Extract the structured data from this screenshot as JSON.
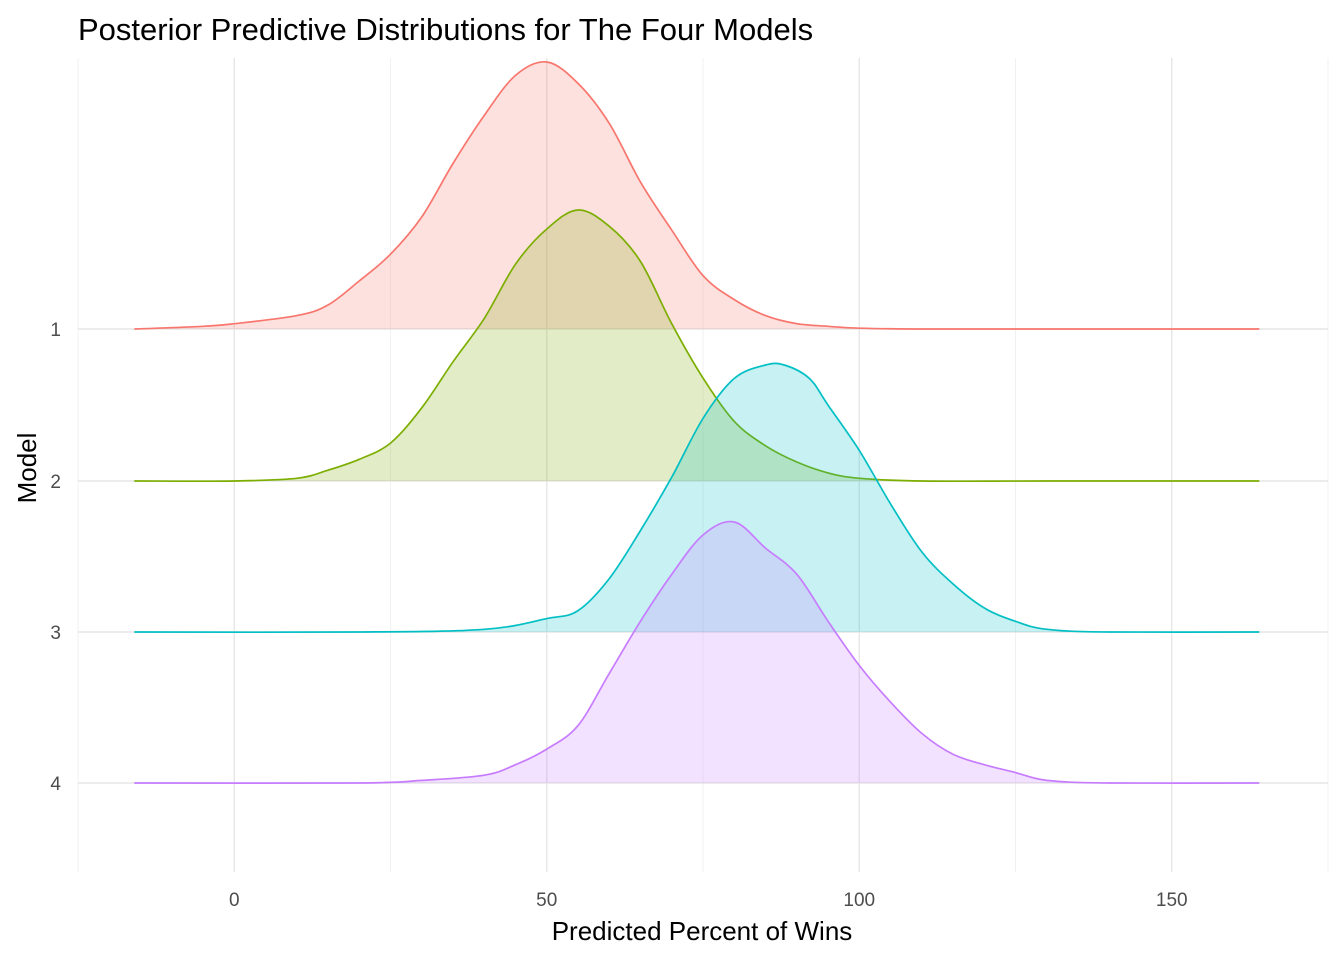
{
  "chart_data": {
    "type": "area",
    "subtype": "ridgeline-density",
    "title": "Posterior Predictive Distributions for The Four Models",
    "xlabel": "Predicted Percent of Wins",
    "ylabel": "Model",
    "xlim": [
      -25,
      175
    ],
    "x_ticks": [
      0,
      50,
      100,
      150
    ],
    "y_categories": [
      "1",
      "2",
      "3",
      "4"
    ],
    "grid": true,
    "legend": "none",
    "series": [
      {
        "category": "1",
        "color": "#F8766D",
        "x": [
          -16,
          -5,
          0,
          10,
          15,
          20,
          25,
          30,
          35,
          40,
          45,
          50,
          55,
          60,
          65,
          70,
          75,
          80,
          85,
          90,
          95,
          100,
          110,
          130,
          164
        ],
        "height": [
          0,
          0.01,
          0.02,
          0.05,
          0.09,
          0.18,
          0.28,
          0.42,
          0.62,
          0.8,
          0.95,
          1.0,
          0.92,
          0.77,
          0.55,
          0.37,
          0.2,
          0.11,
          0.05,
          0.02,
          0.01,
          0.003,
          0,
          0,
          0
        ]
      },
      {
        "category": "2",
        "color": "#7CAE00",
        "x": [
          -16,
          0,
          10,
          15,
          20,
          25,
          30,
          35,
          40,
          45,
          50,
          55,
          60,
          65,
          70,
          75,
          80,
          85,
          90,
          95,
          100,
          110,
          130,
          164
        ],
        "height": [
          0,
          0,
          0.01,
          0.04,
          0.08,
          0.14,
          0.27,
          0.44,
          0.6,
          0.8,
          0.93,
          1.0,
          0.94,
          0.81,
          0.58,
          0.38,
          0.22,
          0.13,
          0.07,
          0.03,
          0.01,
          0,
          0,
          0
        ]
      },
      {
        "category": "3",
        "color": "#00BFC4",
        "x": [
          -16,
          20,
          40,
          50,
          55,
          60,
          65,
          70,
          75,
          80,
          85,
          88,
          92,
          95,
          100,
          105,
          110,
          115,
          120,
          125,
          130,
          140,
          164
        ],
        "height": [
          0,
          0,
          0.01,
          0.05,
          0.08,
          0.2,
          0.38,
          0.58,
          0.8,
          0.95,
          1.0,
          1.0,
          0.95,
          0.85,
          0.68,
          0.48,
          0.3,
          0.18,
          0.09,
          0.04,
          0.01,
          0,
          0
        ]
      },
      {
        "category": "4",
        "color": "#C77CFF",
        "x": [
          -16,
          20,
          30,
          40,
          45,
          50,
          55,
          60,
          65,
          70,
          75,
          80,
          85,
          90,
          95,
          100,
          105,
          110,
          115,
          120,
          125,
          130,
          140,
          164
        ],
        "height": [
          0,
          0,
          0.01,
          0.03,
          0.07,
          0.13,
          0.22,
          0.42,
          0.62,
          0.8,
          0.95,
          1.0,
          0.9,
          0.8,
          0.62,
          0.45,
          0.31,
          0.19,
          0.11,
          0.07,
          0.04,
          0.01,
          0,
          0
        ]
      }
    ]
  }
}
